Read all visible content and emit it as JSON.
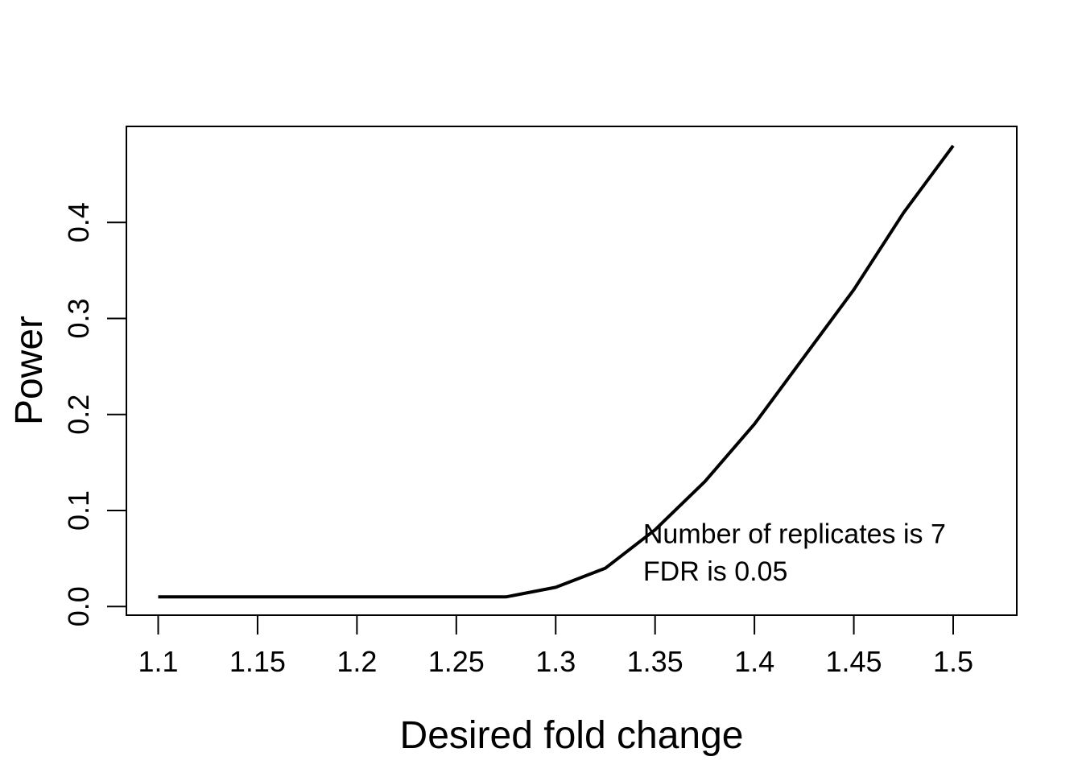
{
  "chart_data": {
    "type": "line",
    "title": "",
    "xlabel": "Desired fold change",
    "ylabel": "Power",
    "xlim": [
      1.084,
      1.532
    ],
    "ylim": [
      -0.009,
      0.5
    ],
    "x_ticks": [
      {
        "value": 1.1,
        "label": "1.1"
      },
      {
        "value": 1.15,
        "label": "1.15"
      },
      {
        "value": 1.2,
        "label": "1.2"
      },
      {
        "value": 1.25,
        "label": "1.25"
      },
      {
        "value": 1.3,
        "label": "1.3"
      },
      {
        "value": 1.35,
        "label": "1.35"
      },
      {
        "value": 1.4,
        "label": "1.4"
      },
      {
        "value": 1.45,
        "label": "1.45"
      },
      {
        "value": 1.5,
        "label": "1.5"
      }
    ],
    "y_ticks": [
      {
        "value": 0.0,
        "label": "0.0"
      },
      {
        "value": 0.1,
        "label": "0.1"
      },
      {
        "value": 0.2,
        "label": "0.2"
      },
      {
        "value": 0.3,
        "label": "0.3"
      },
      {
        "value": 0.4,
        "label": "0.4"
      }
    ],
    "grid": false,
    "series": [
      {
        "color": "#000000",
        "x": [
          1.1,
          1.125,
          1.15,
          1.175,
          1.2,
          1.225,
          1.25,
          1.275,
          1.3,
          1.325,
          1.35,
          1.375,
          1.4,
          1.425,
          1.45,
          1.475,
          1.5
        ],
        "y": [
          0.01,
          0.01,
          0.01,
          0.01,
          0.01,
          0.01,
          0.01,
          0.01,
          0.02,
          0.04,
          0.08,
          0.13,
          0.19,
          0.26,
          0.33,
          0.41,
          0.48
        ]
      }
    ],
    "annotations": [
      {
        "text": "Number of replicates is 7",
        "x": 1.344,
        "y": 0.066
      },
      {
        "text": "FDR is 0.05",
        "x": 1.344,
        "y": 0.027
      }
    ]
  }
}
